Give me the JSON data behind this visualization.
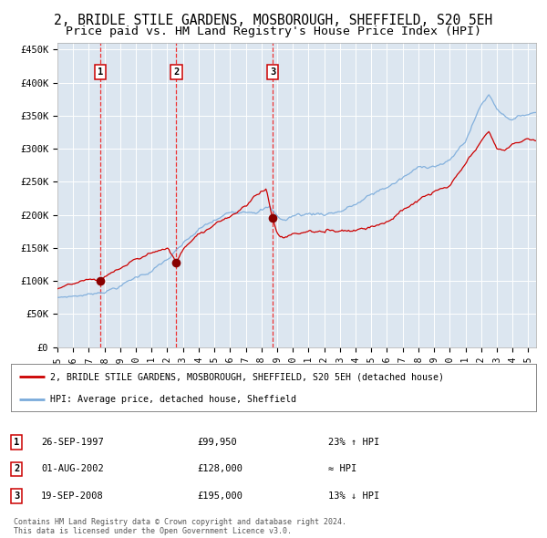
{
  "title_line1": "2, BRIDLE STILE GARDENS, MOSBOROUGH, SHEFFIELD, S20 5EH",
  "title_line2": "Price paid vs. HM Land Registry's House Price Index (HPI)",
  "title_fontsize": 10.5,
  "subtitle_fontsize": 9.5,
  "background_color": "#dce6f0",
  "plot_bg_color": "#dce6f0",
  "fig_bg_color": "#ffffff",
  "red_line_color": "#cc0000",
  "blue_line_color": "#7aabdb",
  "sale_marker_color": "#880000",
  "dashed_line_color": "#ee3333",
  "ylim": [
    0,
    460000
  ],
  "yticks": [
    0,
    50000,
    100000,
    150000,
    200000,
    250000,
    300000,
    350000,
    400000,
    450000
  ],
  "ytick_labels": [
    "£0",
    "£50K",
    "£100K",
    "£150K",
    "£200K",
    "£250K",
    "£300K",
    "£350K",
    "£400K",
    "£450K"
  ],
  "xlim_start": 1995.0,
  "xlim_end": 2025.5,
  "xticks": [
    1995,
    1996,
    1997,
    1998,
    1999,
    2000,
    2001,
    2002,
    2003,
    2004,
    2005,
    2006,
    2007,
    2008,
    2009,
    2010,
    2011,
    2012,
    2013,
    2014,
    2015,
    2016,
    2017,
    2018,
    2019,
    2020,
    2021,
    2022,
    2023,
    2024,
    2025
  ],
  "sales": [
    {
      "year": 1997.73,
      "price": 99950,
      "label": "1"
    },
    {
      "year": 2002.58,
      "price": 128000,
      "label": "2"
    },
    {
      "year": 2008.72,
      "price": 195000,
      "label": "3"
    }
  ],
  "legend_entries": [
    {
      "label": "2, BRIDLE STILE GARDENS, MOSBOROUGH, SHEFFIELD, S20 5EH (detached house)",
      "color": "#cc0000"
    },
    {
      "label": "HPI: Average price, detached house, Sheffield",
      "color": "#7aabdb"
    }
  ],
  "table_rows": [
    {
      "num": "1",
      "date": "26-SEP-1997",
      "price": "£99,950",
      "hpi": "23% ↑ HPI"
    },
    {
      "num": "2",
      "date": "01-AUG-2002",
      "price": "£128,000",
      "hpi": "≈ HPI"
    },
    {
      "num": "3",
      "date": "19-SEP-2008",
      "price": "£195,000",
      "hpi": "13% ↓ HPI"
    }
  ],
  "footer": "Contains HM Land Registry data © Crown copyright and database right 2024.\nThis data is licensed under the Open Government Licence v3.0."
}
